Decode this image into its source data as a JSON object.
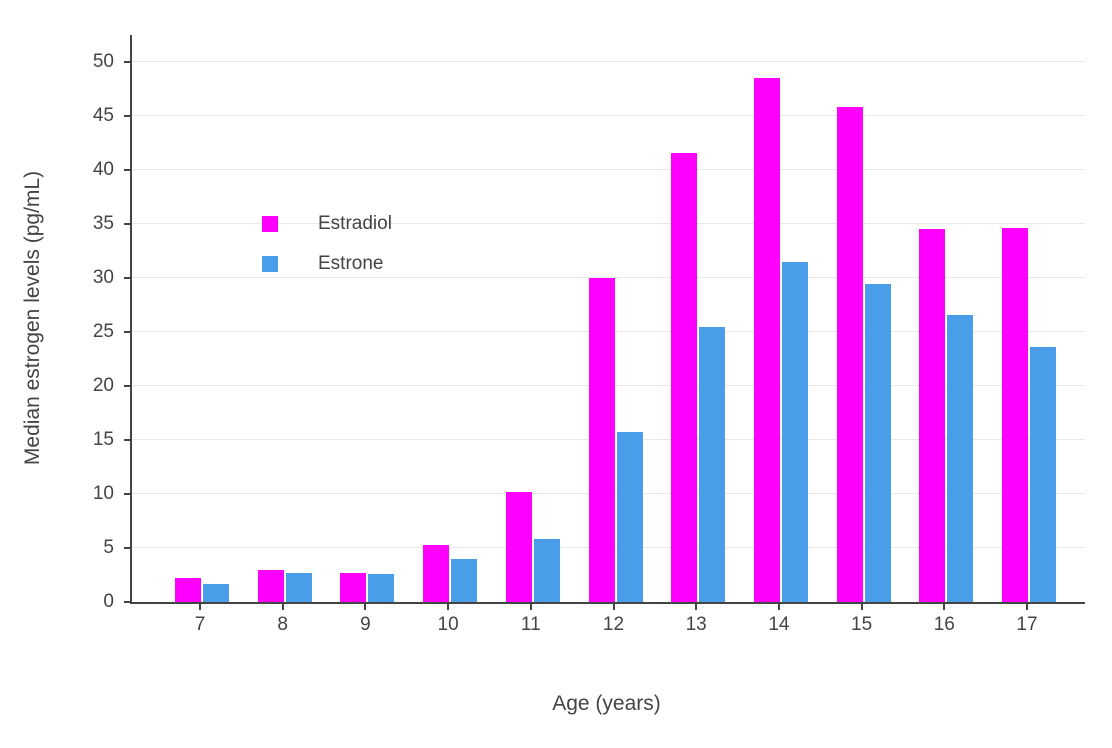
{
  "chart_data": {
    "type": "bar",
    "title": "",
    "xlabel": "Age (years)",
    "ylabel": "Median estrogen levels (pg/mL)",
    "categories": [
      7,
      8,
      9,
      10,
      11,
      12,
      13,
      14,
      15,
      16,
      17
    ],
    "series": [
      {
        "name": "Estradiol",
        "color": "#FF00FF",
        "values": [
          2.2,
          3.0,
          2.7,
          5.3,
          10.2,
          30.0,
          41.6,
          48.5,
          45.8,
          34.5,
          34.6
        ]
      },
      {
        "name": "Estrone",
        "color": "#4A9DE9",
        "values": [
          1.7,
          2.7,
          2.6,
          4.0,
          5.8,
          15.7,
          25.5,
          31.5,
          29.4,
          26.6,
          23.6
        ]
      }
    ],
    "ylim": [
      0,
      52.5
    ],
    "yticks": [
      0,
      5,
      10,
      15,
      20,
      25,
      30,
      35,
      40,
      45,
      50
    ],
    "grid": true,
    "legend_position": "inside-top-left",
    "axis_color": "#444444",
    "grid_color": "#e8e8e8",
    "background_color": "#ffffff"
  }
}
